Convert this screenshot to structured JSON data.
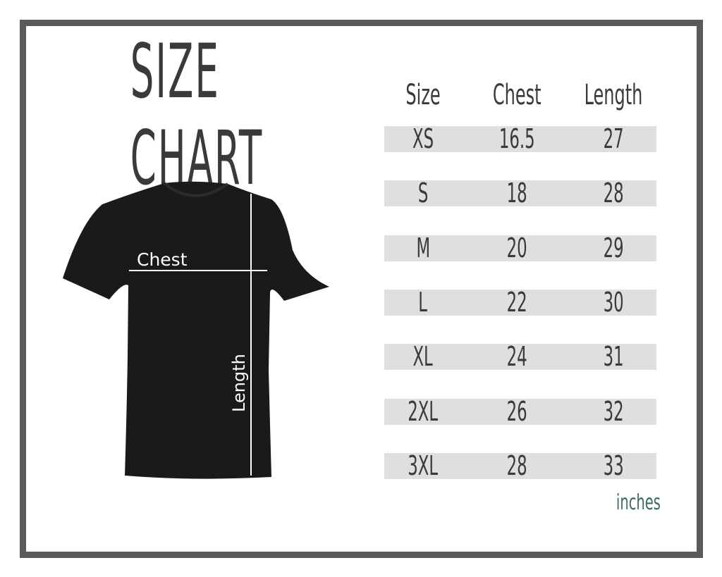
{
  "title": "SIZE CHART",
  "table": {
    "headers": [
      "Size",
      "Chest",
      "Length"
    ],
    "rows": [
      [
        "XS",
        "16.5",
        "27"
      ],
      [
        "S",
        "18",
        "28"
      ],
      [
        "M",
        "20",
        "29"
      ],
      [
        "L",
        "22",
        "30"
      ],
      [
        "XL",
        "24",
        "31"
      ],
      [
        "2XL",
        "26",
        "32"
      ],
      [
        "3XL",
        "28",
        "33"
      ]
    ],
    "units": "inches"
  },
  "diagram": {
    "chest_label": "Chest",
    "length_label": "Length"
  },
  "colors": {
    "frame": "#5a5a57",
    "row_bg": "#dfdfdf",
    "text": "#3a3a3a",
    "units": "#3d6b63",
    "shirt": "#1a1a1a"
  }
}
